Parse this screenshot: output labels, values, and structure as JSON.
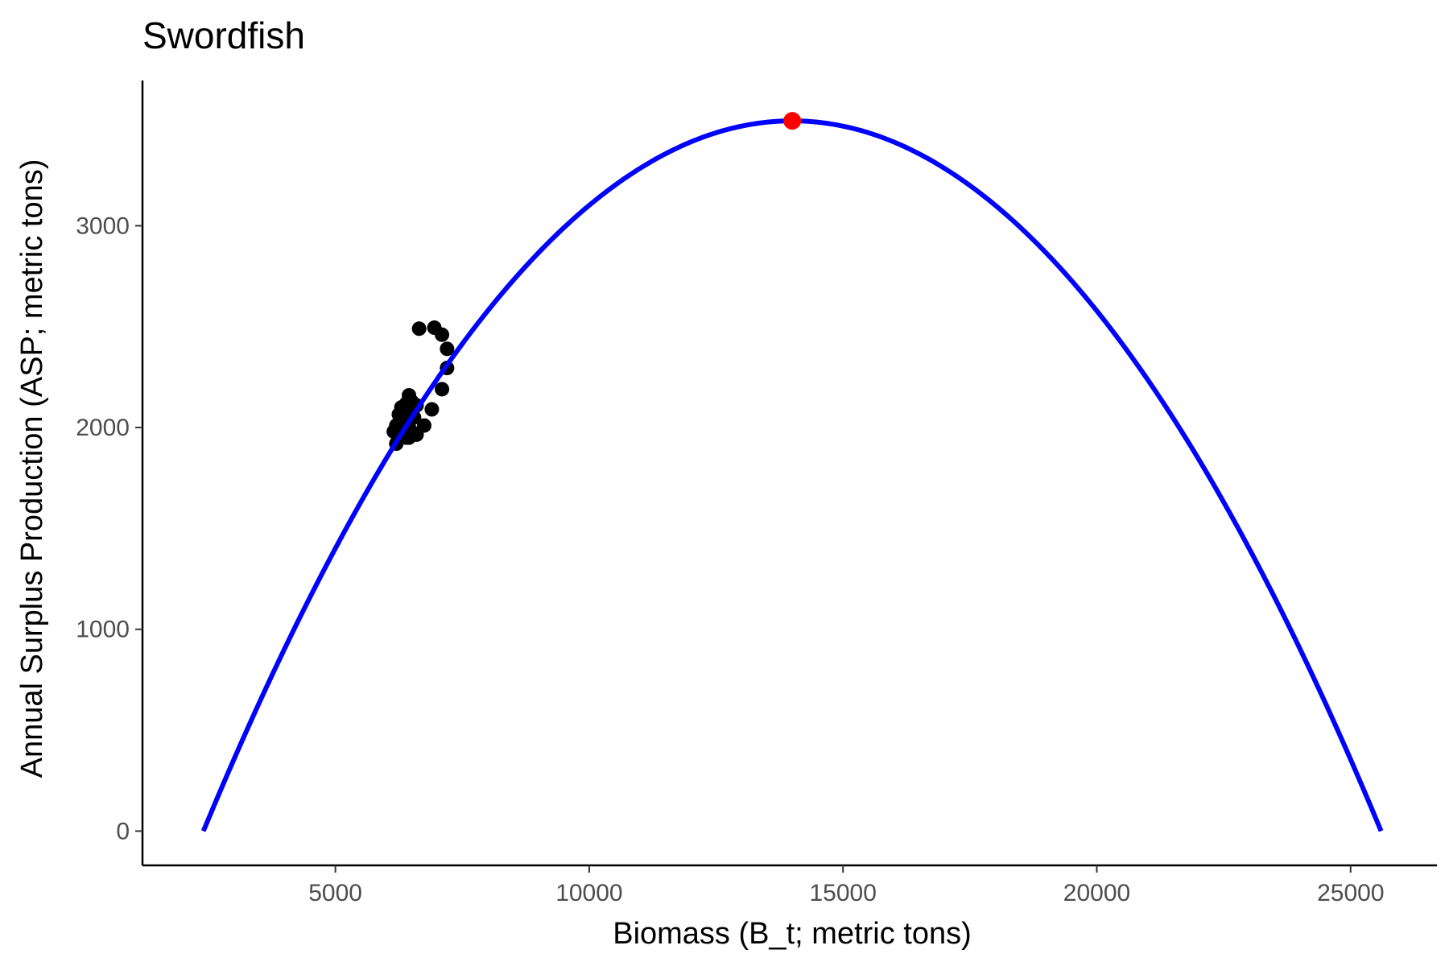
{
  "chart_data": {
    "type": "scatter",
    "title": "Swordfish",
    "xlabel": "Biomass (B_t; metric tons)",
    "ylabel": "Annual Surplus Production (ASP; metric tons)",
    "xlim": [
      1200,
      26700
    ],
    "ylim": [
      -170,
      3720
    ],
    "x_ticks": [
      5000,
      10000,
      15000,
      20000,
      25000
    ],
    "y_ticks": [
      0,
      1000,
      2000,
      3000
    ],
    "grid": false,
    "legend": "none",
    "series": [
      {
        "kind": "points",
        "color": "#000000",
        "points": [
          [
            6650,
            2490
          ],
          [
            6950,
            2495
          ],
          [
            7100,
            2460
          ],
          [
            7200,
            2390
          ],
          [
            7200,
            2295
          ],
          [
            7100,
            2190
          ],
          [
            6900,
            2090
          ],
          [
            6750,
            2010
          ],
          [
            6600,
            1965
          ],
          [
            6450,
            1950
          ],
          [
            6300,
            1965
          ],
          [
            6200,
            1920
          ],
          [
            6150,
            1980
          ],
          [
            6200,
            2010
          ],
          [
            6250,
            2065
          ],
          [
            6350,
            2040
          ],
          [
            6400,
            2080
          ],
          [
            6450,
            2000
          ],
          [
            6300,
            2100
          ],
          [
            6500,
            2065
          ],
          [
            6550,
            2100
          ],
          [
            6600,
            2110
          ],
          [
            6450,
            2160
          ],
          [
            6500,
            2130
          ],
          [
            6400,
            2120
          ],
          [
            6350,
            1990
          ],
          [
            6550,
            2050
          ],
          [
            6400,
            1950
          ],
          [
            6250,
            2020
          ],
          [
            6500,
            1980
          ]
        ]
      },
      {
        "kind": "curve",
        "color": "#0000ff",
        "model": "parabola",
        "x_range": [
          2400,
          25600
        ],
        "peak": [
          14000,
          3520
        ]
      },
      {
        "kind": "highlight",
        "color": "#ff0000",
        "points": [
          [
            14000,
            3520
          ]
        ]
      }
    ]
  }
}
